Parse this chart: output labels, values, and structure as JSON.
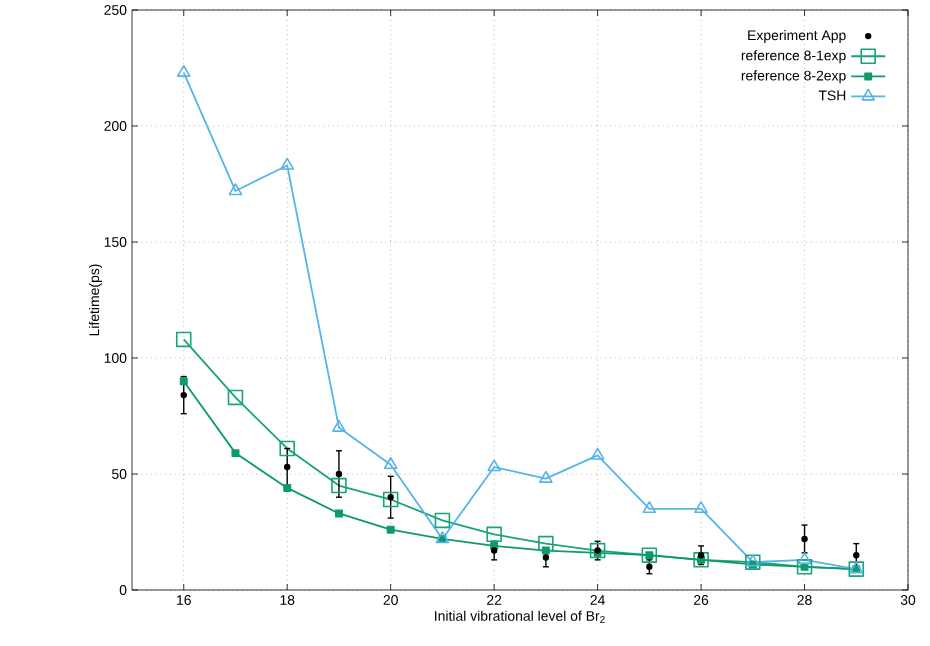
{
  "chart_data": {
    "type": "line",
    "xlabel": "Initial vibrational level of Br$_{2}$",
    "ylabel": "Lifetime(ps)",
    "x": [
      16,
      17,
      18,
      19,
      20,
      21,
      22,
      23,
      24,
      25,
      26,
      27,
      28,
      29
    ],
    "xlim": [
      15,
      30
    ],
    "xticks": [
      16,
      18,
      20,
      22,
      24,
      26,
      28,
      30
    ],
    "ylim": [
      0,
      250
    ],
    "yticks": [
      0,
      50,
      100,
      150,
      200,
      250
    ],
    "grid": true,
    "legend": "top right",
    "line_style": "solid",
    "series": [
      {
        "name": "Experiment App",
        "type": "scatter",
        "marker": "circle",
        "color": "#000000",
        "values": [
          84,
          null,
          53,
          50,
          40,
          null,
          17,
          14,
          17,
          10,
          15,
          null,
          22,
          15
        ],
        "errors": [
          8,
          null,
          8,
          10,
          9,
          null,
          4,
          4,
          4,
          3,
          4,
          null,
          6,
          5
        ]
      },
      {
        "name": "reference 8-1exp",
        "marker": "square",
        "color": "#1aa37a",
        "values": [
          108,
          83,
          61,
          45,
          39,
          30,
          24,
          20,
          17,
          15,
          13,
          12,
          10,
          9
        ]
      },
      {
        "name": "reference 8-2exp",
        "marker": "square*",
        "color": "#0e9a6a",
        "values": [
          90,
          59,
          44,
          33,
          26,
          22,
          19,
          17,
          16,
          15,
          13,
          11,
          10,
          9
        ]
      },
      {
        "name": "TSH",
        "marker": "triangle",
        "color": "#56b4e9",
        "values": [
          223,
          172,
          183,
          70,
          54,
          22,
          53,
          48,
          58,
          35,
          35,
          12,
          13,
          9
        ]
      }
    ]
  }
}
